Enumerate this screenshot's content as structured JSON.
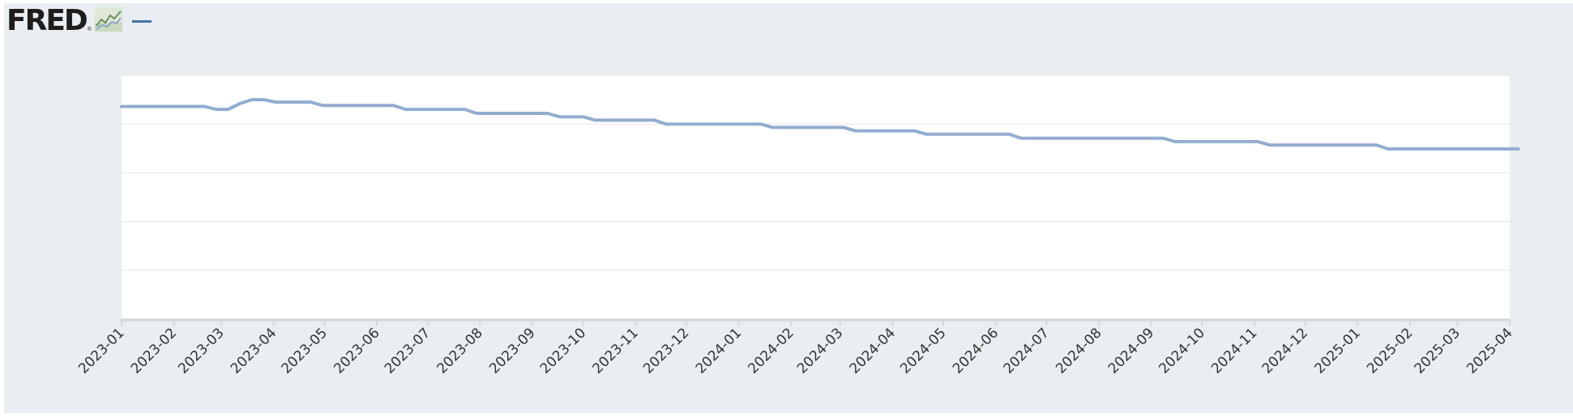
{
  "header": {
    "logo_text": "FRED",
    "logo_registered": "®",
    "icon": "line-chart-icon",
    "legend_color": "#4572a7"
  },
  "colors": {
    "background": "#e8eef1",
    "plot_background": "#ffffff",
    "grid": "#e6e6e6",
    "axis": "#d6d6d6",
    "series": "#93acd0"
  },
  "chart_data": {
    "type": "line",
    "title": "",
    "xlabel": "",
    "ylabel": "",
    "grid": true,
    "y_tick_labels_visible": false,
    "ylim": [
      0,
      5
    ],
    "categories": [
      "2023-01",
      "2023-02",
      "2023-03",
      "2023-04",
      "2023-05",
      "2023-06",
      "2023-07",
      "2023-08",
      "2023-09",
      "2023-10",
      "2023-11",
      "2023-12",
      "2024-01",
      "2024-02",
      "2024-03",
      "2024-04",
      "2024-05",
      "2024-06",
      "2024-07",
      "2024-08",
      "2024-09",
      "2024-10",
      "2024-11",
      "2024-12",
      "2025-01",
      "2025-02",
      "2025-03",
      "2025-04"
    ],
    "series": [
      {
        "name": "",
        "x": [
          "2023-01-01",
          "2023-01-08",
          "2023-01-15",
          "2023-01-22",
          "2023-01-29",
          "2023-02-05",
          "2023-02-12",
          "2023-02-19",
          "2023-02-26",
          "2023-03-05",
          "2023-03-12",
          "2023-03-19",
          "2023-03-26",
          "2023-04-02",
          "2023-04-09",
          "2023-04-16",
          "2023-04-23",
          "2023-04-30",
          "2023-05-07",
          "2023-05-14",
          "2023-05-21",
          "2023-05-28",
          "2023-06-04",
          "2023-06-11",
          "2023-06-18",
          "2023-06-25",
          "2023-07-02",
          "2023-07-09",
          "2023-07-16",
          "2023-07-23",
          "2023-07-30",
          "2023-08-06",
          "2023-08-13",
          "2023-08-20",
          "2023-08-27",
          "2023-09-03",
          "2023-09-10",
          "2023-09-17",
          "2023-09-24",
          "2023-10-01",
          "2023-10-08",
          "2023-10-15",
          "2023-10-22",
          "2023-10-29",
          "2023-11-05",
          "2023-11-12",
          "2023-11-19",
          "2023-11-26",
          "2023-12-03",
          "2023-12-10",
          "2023-12-17",
          "2023-12-24",
          "2023-12-31",
          "2024-01-07",
          "2024-01-14",
          "2024-01-21",
          "2024-01-28",
          "2024-02-04",
          "2024-02-11",
          "2024-02-18",
          "2024-02-25",
          "2024-03-03",
          "2024-03-10",
          "2024-03-17",
          "2024-03-24",
          "2024-03-31",
          "2024-04-07",
          "2024-04-14",
          "2024-04-21",
          "2024-04-28",
          "2024-05-05",
          "2024-05-12",
          "2024-05-19",
          "2024-05-26",
          "2024-06-02",
          "2024-06-09",
          "2024-06-16",
          "2024-06-23",
          "2024-06-30",
          "2024-07-07",
          "2024-07-14",
          "2024-07-21",
          "2024-07-28",
          "2024-08-04",
          "2024-08-11",
          "2024-08-18",
          "2024-08-25",
          "2024-09-01",
          "2024-09-08",
          "2024-09-15",
          "2024-09-22",
          "2024-09-29",
          "2024-10-06",
          "2024-10-13",
          "2024-10-20",
          "2024-10-27",
          "2024-11-03",
          "2024-11-10",
          "2024-11-17",
          "2024-11-24",
          "2024-12-01",
          "2024-12-08",
          "2024-12-15",
          "2024-12-22",
          "2024-12-29",
          "2025-01-05",
          "2025-01-12",
          "2025-01-19",
          "2025-01-26",
          "2025-02-02",
          "2025-02-09",
          "2025-02-16",
          "2025-02-23",
          "2025-03-02",
          "2025-03-09",
          "2025-03-16",
          "2025-03-23",
          "2025-03-30",
          "2025-04-06"
        ],
        "values": [
          4.36,
          4.36,
          4.36,
          4.36,
          4.36,
          4.36,
          4.36,
          4.36,
          4.3,
          4.3,
          4.42,
          4.5,
          4.5,
          4.45,
          4.45,
          4.45,
          4.45,
          4.38,
          4.38,
          4.38,
          4.38,
          4.38,
          4.38,
          4.38,
          4.3,
          4.3,
          4.3,
          4.3,
          4.3,
          4.3,
          4.22,
          4.22,
          4.22,
          4.22,
          4.22,
          4.22,
          4.22,
          4.15,
          4.15,
          4.15,
          4.08,
          4.08,
          4.08,
          4.08,
          4.08,
          4.08,
          4.0,
          4.0,
          4.0,
          4.0,
          4.0,
          4.0,
          4.0,
          4.0,
          4.0,
          3.93,
          3.93,
          3.93,
          3.93,
          3.93,
          3.93,
          3.93,
          3.86,
          3.86,
          3.86,
          3.86,
          3.86,
          3.86,
          3.79,
          3.79,
          3.79,
          3.79,
          3.79,
          3.79,
          3.79,
          3.79,
          3.71,
          3.71,
          3.71,
          3.71,
          3.71,
          3.71,
          3.71,
          3.71,
          3.71,
          3.71,
          3.71,
          3.71,
          3.71,
          3.64,
          3.64,
          3.64,
          3.64,
          3.64,
          3.64,
          3.64,
          3.64,
          3.57,
          3.57,
          3.57,
          3.57,
          3.57,
          3.57,
          3.57,
          3.57,
          3.57,
          3.57,
          3.49,
          3.49,
          3.49,
          3.49,
          3.49,
          3.49,
          3.49,
          3.49,
          3.49,
          3.49,
          3.49,
          3.49
        ]
      }
    ]
  }
}
